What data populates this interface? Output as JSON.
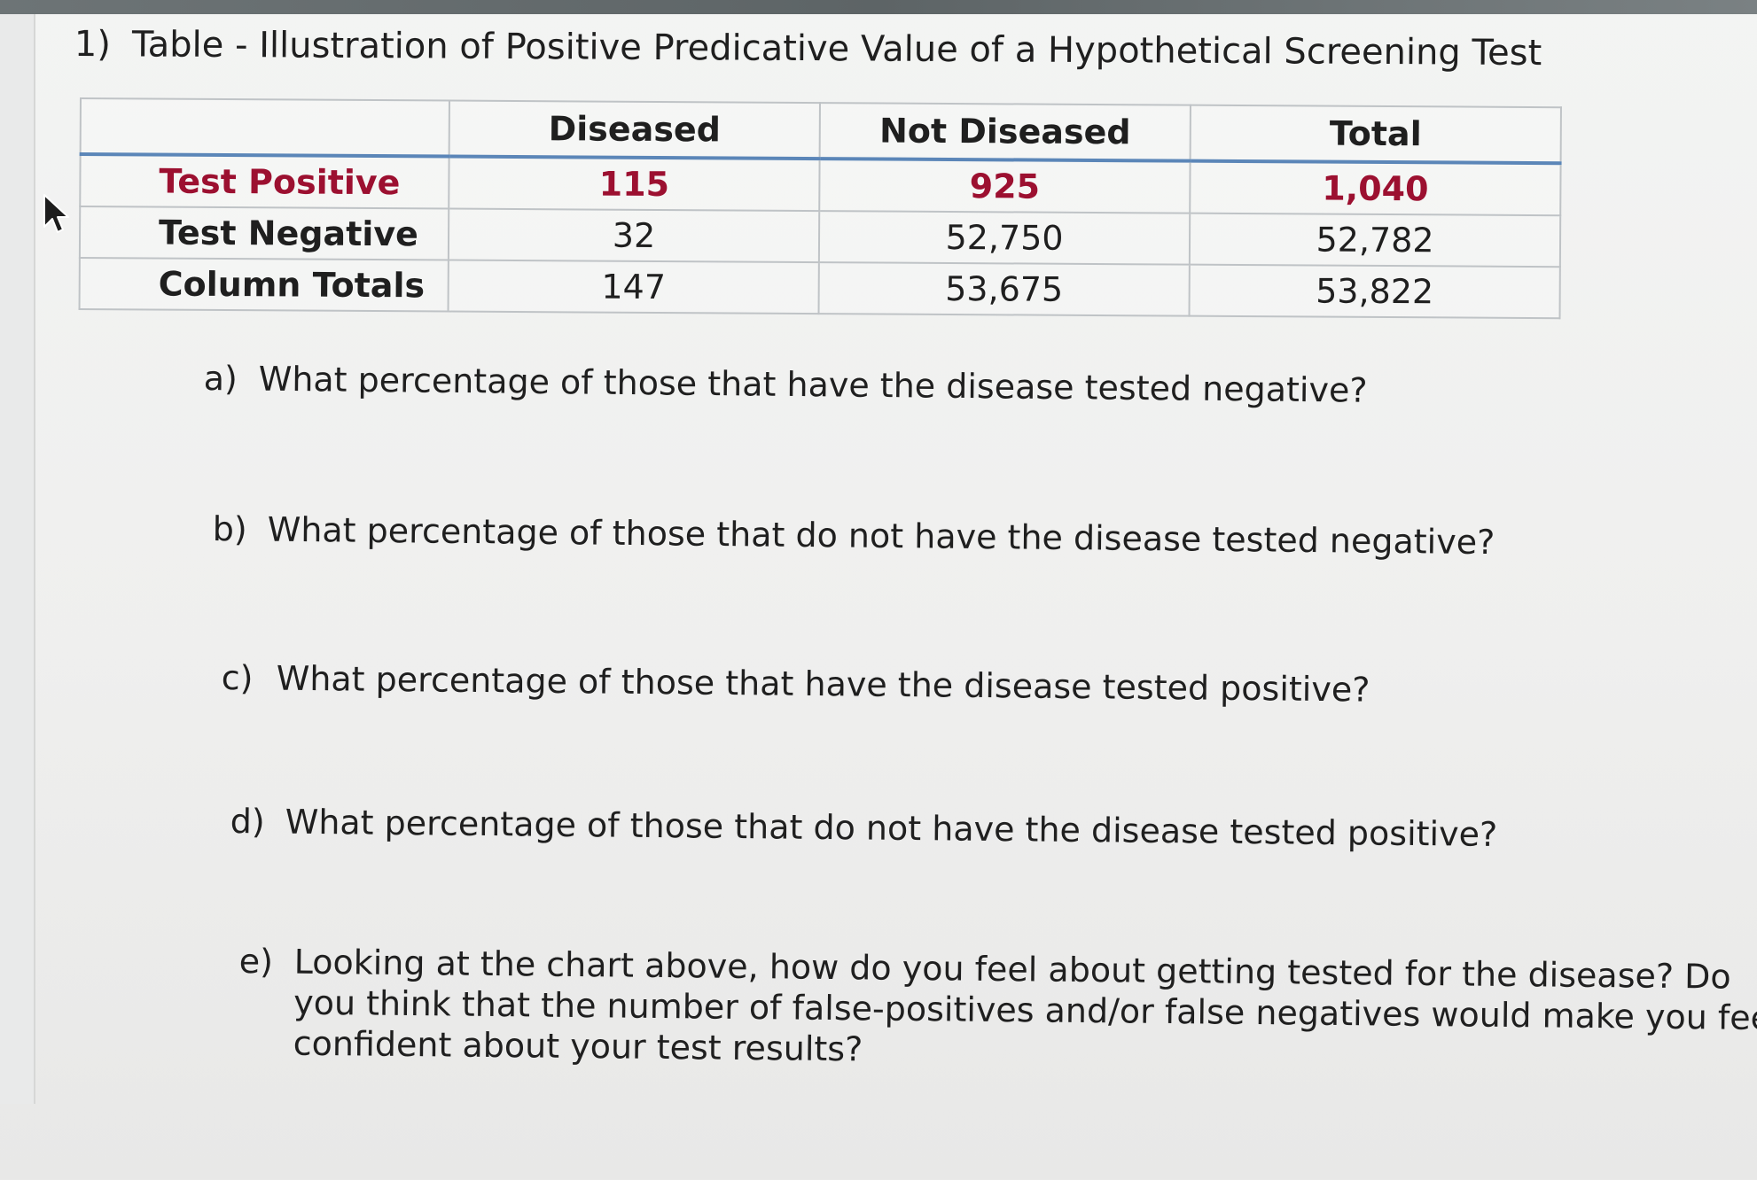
{
  "heading": {
    "number": "1)",
    "title": "Table - Illustration of Positive Predicative Value of a Hypothetical Screening Test"
  },
  "table": {
    "columns": [
      "",
      "Diseased",
      "Not Diseased",
      "Total"
    ],
    "rows": [
      {
        "label": "Test Positive",
        "values": [
          "115",
          "925",
          "1,040"
        ]
      },
      {
        "label": "Test Negative",
        "values": [
          "32",
          "52,750",
          "52,782"
        ]
      },
      {
        "label": "Column Totals",
        "values": [
          "147",
          "53,675",
          "53,822"
        ]
      }
    ],
    "highlight_color": "#9c1030",
    "header_rule_color": "#5b86b8"
  },
  "questions": [
    {
      "letter": "a)",
      "text": "What percentage of those that have the disease tested negative?"
    },
    {
      "letter": "b)",
      "text": "What percentage of those that do not have the disease tested negative?"
    },
    {
      "letter": "c)",
      "text": "What percentage of those that have the disease tested positive?"
    },
    {
      "letter": "d)",
      "text": "What percentage of those that do not have the disease tested positive?"
    },
    {
      "letter": "e)",
      "text": "Looking at the chart above, how do you feel about getting tested for the disease?  Do you think that the number of false-positives and/or false negatives would make you feel confident about your test results?"
    }
  ],
  "icons": {
    "cursor": "cursor-arrow-icon"
  }
}
